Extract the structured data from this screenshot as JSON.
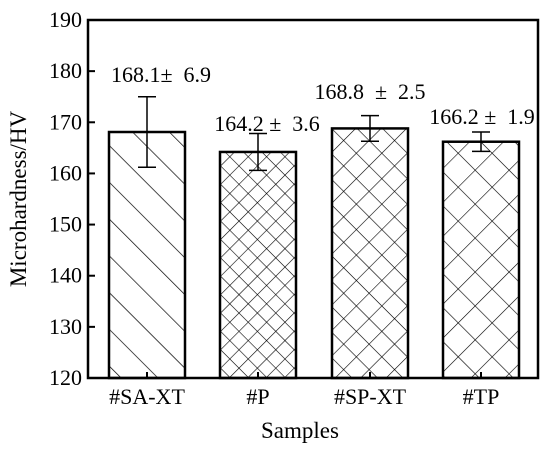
{
  "chart_data": {
    "type": "bar",
    "categories": [
      "#SA-XT",
      "#P",
      "#SP-XT",
      "#TP"
    ],
    "values": [
      168.1,
      164.2,
      168.8,
      166.2
    ],
    "errors": [
      6.9,
      3.6,
      2.5,
      1.9
    ],
    "value_labels": [
      "168.1±  6.9",
      "164.2 ±  3.6",
      "168.8  ±  2.5",
      "166.2 ±  1.9"
    ],
    "patterns": [
      "diagonal",
      "fine-crosshatch",
      "crosshatch",
      "wide-crosshatch"
    ],
    "xlabel": "Samples",
    "ylabel": "Microhardness/HV",
    "ylim": [
      120,
      190
    ],
    "yticks": [
      "120",
      "130",
      "140",
      "150",
      "160",
      "170",
      "180",
      "190"
    ],
    "grid": false,
    "legend": "none",
    "colors": {
      "bar_edge": "#000000",
      "hatch": "#000000",
      "fill": "#ffffff"
    }
  }
}
